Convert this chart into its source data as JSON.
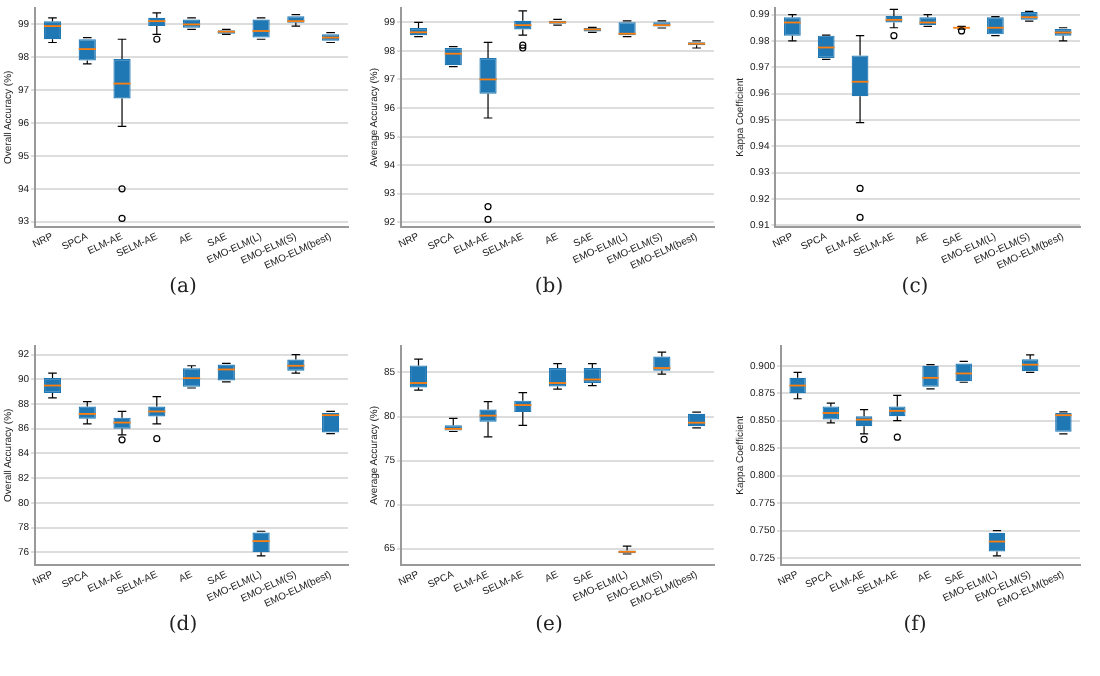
{
  "chart_data": [
    {
      "type": "box",
      "ylabel": "Overall Accuracy (%)",
      "annotations": [
        "(a)"
      ],
      "color": "#1f77b4",
      "grid": "y",
      "categories": [
        "NRP",
        "SPCA",
        "ELM-AE",
        "SELM-AE",
        "AE",
        "SAE",
        "EMO-ELM(L)",
        "EMO-ELM(S)",
        "EMO-ELM(best)"
      ],
      "ylim": [
        92.85,
        99.5
      ],
      "yticks": [
        93,
        94,
        95,
        96,
        97,
        98,
        99
      ],
      "boxes": [
        {
          "low": 98.45,
          "q1": 98.55,
          "median": 98.95,
          "q3": 99.1,
          "high": 99.2
        },
        {
          "low": 97.8,
          "q1": 97.9,
          "median": 98.25,
          "q3": 98.55,
          "high": 98.6
        },
        {
          "low": 95.9,
          "q1": 96.75,
          "median": 97.2,
          "q3": 97.95,
          "high": 98.55,
          "outliers": [
            94.0,
            93.1
          ]
        },
        {
          "low": 98.7,
          "q1": 98.95,
          "median": 99.1,
          "q3": 99.2,
          "high": 99.35,
          "outliers": [
            98.55
          ]
        },
        {
          "low": 98.85,
          "q1": 98.9,
          "median": 99.0,
          "q3": 99.15,
          "high": 99.2
        },
        {
          "low": 98.7,
          "q1": 98.72,
          "median": 98.78,
          "q3": 98.82,
          "high": 98.85
        },
        {
          "low": 98.55,
          "q1": 98.6,
          "median": 98.8,
          "q3": 99.15,
          "high": 99.2
        },
        {
          "low": 98.95,
          "q1": 99.05,
          "median": 99.1,
          "q3": 99.25,
          "high": 99.3
        },
        {
          "low": 98.45,
          "q1": 98.5,
          "median": 98.6,
          "q3": 98.7,
          "high": 98.75
        }
      ]
    },
    {
      "type": "box",
      "ylabel": "Average Accuracy (%)",
      "annotations": [
        "(b)"
      ],
      "color": "#1f77b4",
      "grid": "y",
      "categories": [
        "NRP",
        "SPCA",
        "ELM-AE",
        "SELM-AE",
        "AE",
        "SAE",
        "EMO-ELM(L)",
        "EMO-ELM(S)",
        "EMO-ELM(best)"
      ],
      "ylim": [
        91.85,
        99.5
      ],
      "yticks": [
        92,
        93,
        94,
        95,
        96,
        97,
        98,
        99
      ],
      "boxes": [
        {
          "low": 98.5,
          "q1": 98.55,
          "median": 98.65,
          "q3": 98.8,
          "high": 99.0
        },
        {
          "low": 97.45,
          "q1": 97.5,
          "median": 97.9,
          "q3": 98.1,
          "high": 98.15
        },
        {
          "low": 95.65,
          "q1": 96.5,
          "median": 97.0,
          "q3": 97.75,
          "high": 98.3,
          "outliers": [
            92.55,
            92.1
          ]
        },
        {
          "low": 98.55,
          "q1": 98.75,
          "median": 98.9,
          "q3": 99.05,
          "high": 99.4,
          "outliers": [
            98.2,
            98.1
          ]
        },
        {
          "low": 98.9,
          "q1": 98.95,
          "median": 99.0,
          "q3": 99.05,
          "high": 99.1
        },
        {
          "low": 98.65,
          "q1": 98.68,
          "median": 98.75,
          "q3": 98.8,
          "high": 98.82
        },
        {
          "low": 98.5,
          "q1": 98.55,
          "median": 98.6,
          "q3": 99.0,
          "high": 99.05
        },
        {
          "low": 98.8,
          "q1": 98.85,
          "median": 98.9,
          "q3": 99.0,
          "high": 99.05
        },
        {
          "low": 98.1,
          "q1": 98.2,
          "median": 98.25,
          "q3": 98.3,
          "high": 98.35
        }
      ]
    },
    {
      "type": "box",
      "ylabel": "Kappa Coefficient",
      "annotations": [
        "(c)"
      ],
      "color": "#1f77b4",
      "grid": "y",
      "categories": [
        "NRP",
        "SPCA",
        "ELM-AE",
        "SELM-AE",
        "AE",
        "SAE",
        "EMO-ELM(L)",
        "EMO-ELM(S)",
        "EMO-ELM(best)"
      ],
      "ylim": [
        0.9095,
        0.9925
      ],
      "yticks": [
        0.91,
        0.92,
        0.93,
        0.94,
        0.95,
        0.96,
        0.97,
        0.98,
        0.99
      ],
      "boxes": [
        {
          "low": 0.98,
          "q1": 0.982,
          "median": 0.987,
          "q3": 0.989,
          "high": 0.99
        },
        {
          "low": 0.973,
          "q1": 0.9735,
          "median": 0.9775,
          "q3": 0.982,
          "high": 0.9822
        },
        {
          "low": 0.949,
          "q1": 0.959,
          "median": 0.9645,
          "q3": 0.9745,
          "high": 0.982,
          "outliers": [
            0.924,
            0.913
          ]
        },
        {
          "low": 0.985,
          "q1": 0.987,
          "median": 0.988,
          "q3": 0.9895,
          "high": 0.992,
          "outliers": [
            0.982
          ]
        },
        {
          "low": 0.9855,
          "q1": 0.986,
          "median": 0.987,
          "q3": 0.989,
          "high": 0.99
        },
        {
          "low": 0.9845,
          "q1": 0.9848,
          "median": 0.985,
          "q3": 0.9852,
          "high": 0.9855,
          "outliers": [
            0.9838
          ]
        },
        {
          "low": 0.982,
          "q1": 0.9825,
          "median": 0.985,
          "q3": 0.989,
          "high": 0.9892
        },
        {
          "low": 0.9875,
          "q1": 0.988,
          "median": 0.989,
          "q3": 0.991,
          "high": 0.9912
        },
        {
          "low": 0.98,
          "q1": 0.982,
          "median": 0.9832,
          "q3": 0.9845,
          "high": 0.985
        }
      ]
    },
    {
      "type": "box",
      "ylabel": "Overall Accuracy (%)",
      "annotations": [
        "(d)"
      ],
      "color": "#1f77b4",
      "grid": "y",
      "categories": [
        "NRP",
        "SPCA",
        "ELM-AE",
        "SELM-AE",
        "AE",
        "SAE",
        "EMO-ELM(L)",
        "EMO-ELM(S)",
        "EMO-ELM(best)"
      ],
      "ylim": [
        75,
        92.7
      ],
      "yticks": [
        76,
        78,
        80,
        82,
        84,
        86,
        88,
        90,
        92
      ],
      "boxes": [
        {
          "low": 88.5,
          "q1": 88.9,
          "median": 89.5,
          "q3": 90.1,
          "high": 90.5
        },
        {
          "low": 86.4,
          "q1": 86.8,
          "median": 87.2,
          "q3": 87.8,
          "high": 88.2
        },
        {
          "low": 85.5,
          "q1": 86.0,
          "median": 86.5,
          "q3": 86.9,
          "high": 87.4,
          "outliers": [
            85.1
          ]
        },
        {
          "low": 86.4,
          "q1": 87.0,
          "median": 87.4,
          "q3": 87.8,
          "high": 88.6,
          "outliers": [
            85.2
          ]
        },
        {
          "low": 89.3,
          "q1": 89.4,
          "median": 90.1,
          "q3": 90.9,
          "high": 91.1
        },
        {
          "low": 89.8,
          "q1": 89.9,
          "median": 90.8,
          "q3": 91.2,
          "high": 91.3
        },
        {
          "low": 75.7,
          "q1": 76.0,
          "median": 76.9,
          "q3": 77.6,
          "high": 77.7
        },
        {
          "low": 90.5,
          "q1": 90.7,
          "median": 91.1,
          "q3": 91.6,
          "high": 92.0
        },
        {
          "low": 85.6,
          "q1": 85.7,
          "median": 87.1,
          "q3": 87.3,
          "high": 87.4
        }
      ]
    },
    {
      "type": "box",
      "ylabel": "Average Accuracy (%)",
      "annotations": [
        "(e)"
      ],
      "color": "#1f77b4",
      "grid": "y",
      "categories": [
        "NRP",
        "SPCA",
        "ELM-AE",
        "SELM-AE",
        "AE",
        "SAE",
        "EMO-ELM(L)",
        "EMO-ELM(S)",
        "EMO-ELM(best)"
      ],
      "ylim": [
        63.2,
        88
      ],
      "yticks": [
        65,
        70,
        75,
        80,
        85
      ],
      "boxes": [
        {
          "low": 83.0,
          "q1": 83.3,
          "median": 83.8,
          "q3": 85.8,
          "high": 86.5
        },
        {
          "low": 78.3,
          "q1": 78.4,
          "median": 78.6,
          "q3": 79.0,
          "high": 79.8
        },
        {
          "low": 77.7,
          "q1": 79.4,
          "median": 80.1,
          "q3": 80.8,
          "high": 81.7
        },
        {
          "low": 79.0,
          "q1": 80.5,
          "median": 81.3,
          "q3": 81.8,
          "high": 82.7
        },
        {
          "low": 83.1,
          "q1": 83.4,
          "median": 83.8,
          "q3": 85.5,
          "high": 86.0
        },
        {
          "low": 83.5,
          "q1": 83.8,
          "median": 84.2,
          "q3": 85.5,
          "high": 86.0
        },
        {
          "low": 64.4,
          "q1": 64.5,
          "median": 64.65,
          "q3": 64.8,
          "high": 65.3
        },
        {
          "low": 84.8,
          "q1": 85.2,
          "median": 85.5,
          "q3": 86.8,
          "high": 87.3
        },
        {
          "low": 78.7,
          "q1": 78.9,
          "median": 79.3,
          "q3": 80.3,
          "high": 80.5
        }
      ]
    },
    {
      "type": "box",
      "ylabel": "Kappa Coefficient",
      "annotations": [
        "(f)"
      ],
      "color": "#1f77b4",
      "grid": "y",
      "categories": [
        "NRP",
        "SPCA",
        "ELM-AE",
        "SELM-AE",
        "AE",
        "SAE",
        "EMO-ELM(L)",
        "EMO-ELM(S)",
        "EMO-ELM(best)"
      ],
      "ylim": [
        0.719,
        0.918
      ],
      "yticks": [
        {
          "value": 0.725,
          "label": "0.725"
        },
        {
          "value": 0.75,
          "label": "0.750"
        },
        {
          "value": 0.775,
          "label": "0.775"
        },
        {
          "value": 0.8,
          "label": "0.800"
        },
        {
          "value": 0.825,
          "label": "0.825"
        },
        {
          "value": 0.85,
          "label": "0.850"
        },
        {
          "value": 0.875,
          "label": "0.875"
        },
        {
          "value": 0.9,
          "label": "0.900"
        }
      ],
      "boxes": [
        {
          "low": 0.87,
          "q1": 0.875,
          "median": 0.882,
          "q3": 0.889,
          "high": 0.894
        },
        {
          "low": 0.848,
          "q1": 0.851,
          "median": 0.857,
          "q3": 0.863,
          "high": 0.866
        },
        {
          "low": 0.838,
          "q1": 0.845,
          "median": 0.851,
          "q3": 0.854,
          "high": 0.86,
          "outliers": [
            0.833
          ]
        },
        {
          "low": 0.85,
          "q1": 0.854,
          "median": 0.859,
          "q3": 0.863,
          "high": 0.873,
          "outliers": [
            0.835
          ]
        },
        {
          "low": 0.879,
          "q1": 0.881,
          "median": 0.889,
          "q3": 0.9,
          "high": 0.901
        },
        {
          "low": 0.885,
          "q1": 0.886,
          "median": 0.893,
          "q3": 0.902,
          "high": 0.904
        },
        {
          "low": 0.727,
          "q1": 0.731,
          "median": 0.74,
          "q3": 0.748,
          "high": 0.75
        },
        {
          "low": 0.894,
          "q1": 0.895,
          "median": 0.901,
          "q3": 0.906,
          "high": 0.91
        },
        {
          "low": 0.838,
          "q1": 0.84,
          "median": 0.855,
          "q3": 0.857,
          "high": 0.858
        }
      ]
    }
  ]
}
